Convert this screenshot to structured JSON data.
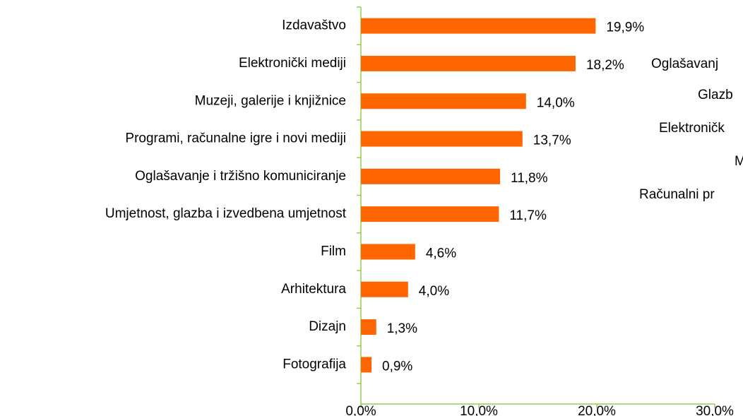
{
  "chart_data": {
    "type": "bar",
    "orientation": "horizontal",
    "categories": [
      "Izdavaštvo",
      "Elektronički mediji",
      "Muzeji, galerije i knjižnice",
      "Programi, računalne igre i novi mediji",
      "Oglašavanje i tržišno komuniciranje",
      "Umjetnost, glazba i izvedbena umjetnost",
      "Film",
      "Arhitektura",
      "Dizajn",
      "Fotografija"
    ],
    "values": [
      19.9,
      18.2,
      14.0,
      13.7,
      11.8,
      11.7,
      4.6,
      4.0,
      1.3,
      0.9
    ],
    "value_labels": [
      "19,9%",
      "18,2%",
      "14,0%",
      "13,7%",
      "11,8%",
      "11,7%",
      "4,6%",
      "4,0%",
      "1,3%",
      "0,9%"
    ],
    "color": "#ff6600",
    "axis_color": "#92d050",
    "xlim": [
      0,
      30
    ],
    "xticks": [
      {
        "value": 0,
        "label": "0,0%"
      },
      {
        "value": 10,
        "label": "10,0%"
      },
      {
        "value": 20,
        "label": "20,0%"
      },
      {
        "value": 30,
        "label": "30,0%"
      }
    ],
    "annotations": [
      "Oglašavanj",
      "Glazb",
      "Elektroničk",
      "M",
      "Računalni pr"
    ]
  }
}
